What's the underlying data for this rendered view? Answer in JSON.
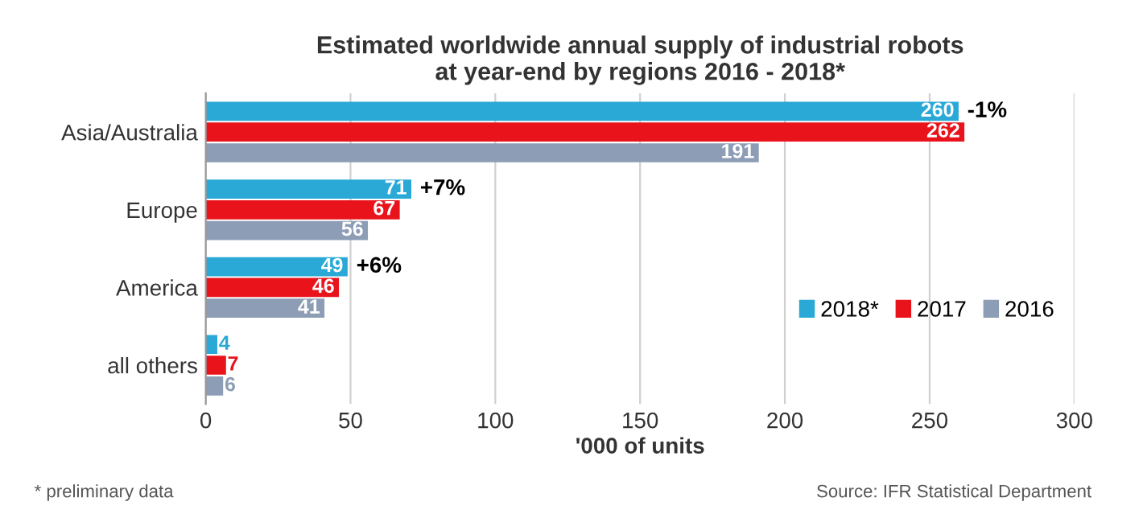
{
  "chart_data": {
    "type": "bar",
    "orientation": "horizontal",
    "title": "Estimated worldwide annual supply of industrial robots\nat year-end by regions 2016 - 2018*",
    "xlabel": "'000 of units",
    "categories": [
      "Asia/Australia",
      "Europe",
      "America",
      "all others"
    ],
    "series": [
      {
        "name": "2018*",
        "color": "#2aa9d6",
        "values": [
          260,
          71,
          49,
          4
        ]
      },
      {
        "name": "2017",
        "color": "#e8131b",
        "values": [
          262,
          67,
          46,
          7
        ]
      },
      {
        "name": "2016",
        "color": "#8c9db5",
        "values": [
          191,
          56,
          41,
          6
        ]
      }
    ],
    "xlim": [
      0,
      300
    ],
    "xticks": [
      0,
      50,
      100,
      150,
      200,
      250,
      300
    ],
    "grid": "x",
    "legend": "right",
    "data_labels": true,
    "annotations": [
      "-1%",
      "+7%",
      "+6%",
      "* preliminary data",
      "Source: IFR Statistical Department"
    ]
  }
}
